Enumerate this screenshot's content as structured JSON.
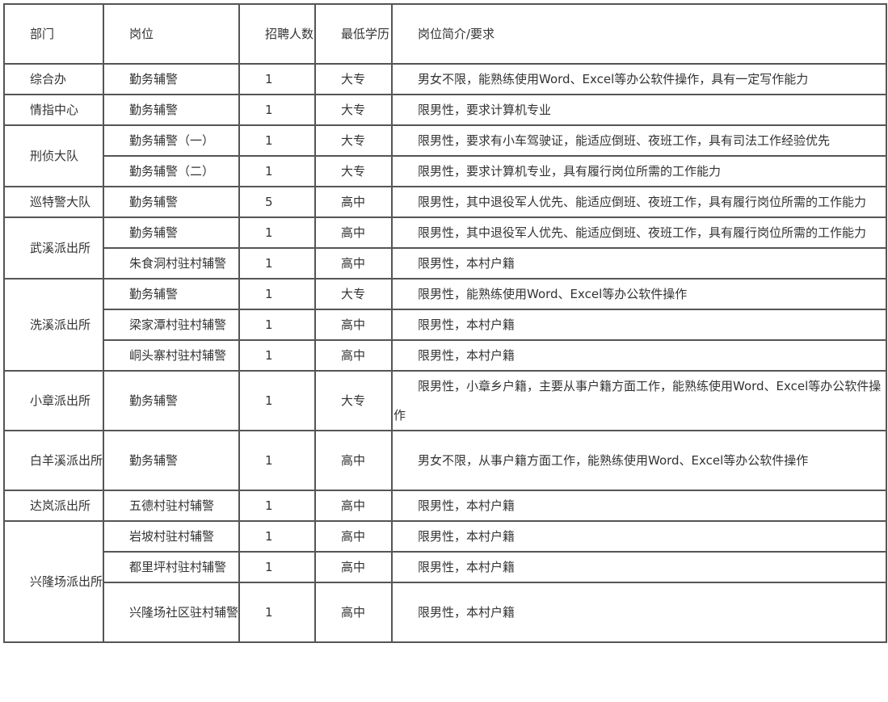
{
  "headers": [
    "部门",
    "岗位",
    "招聘人数",
    "最低学历",
    "岗位简介/要求"
  ],
  "departments": [
    {
      "name": "综合办",
      "positions": [
        {
          "title": "勤务辅警",
          "count": "1",
          "education": "大专",
          "requirements": "男女不限，能熟练使用Word、Excel等办公软件操作，具有一定写作能力"
        }
      ]
    },
    {
      "name": "情指中心",
      "positions": [
        {
          "title": "勤务辅警",
          "count": "1",
          "education": "大专",
          "requirements": "限男性，要求计算机专业"
        }
      ]
    },
    {
      "name": "刑侦大队",
      "positions": [
        {
          "title": "勤务辅警（一）",
          "count": "1",
          "education": "大专",
          "requirements": "限男性，要求有小车驾驶证，能适应倒班、夜班工作，具有司法工作经验优先"
        },
        {
          "title": "勤务辅警（二）",
          "count": "1",
          "education": "大专",
          "requirements": "限男性，要求计算机专业，具有履行岗位所需的工作能力"
        }
      ]
    },
    {
      "name": "巡特警大队",
      "positions": [
        {
          "title": "勤务辅警",
          "count": "5",
          "education": "高中",
          "requirements": "限男性，其中退役军人优先、能适应倒班、夜班工作，具有履行岗位所需的工作能力"
        }
      ]
    },
    {
      "name": "武溪派出所",
      "positions": [
        {
          "title": "勤务辅警",
          "count": "1",
          "education": "高中",
          "requirements": "限男性，其中退役军人优先、能适应倒班、夜班工作，具有履行岗位所需的工作能力"
        },
        {
          "title": "朱食洞村驻村辅警",
          "count": "1",
          "education": "高中",
          "requirements": "限男性，本村户籍"
        }
      ]
    },
    {
      "name": "洗溪派出所",
      "positions": [
        {
          "title": "勤务辅警",
          "count": "1",
          "education": "大专",
          "requirements": "限男性，能熟练使用Word、Excel等办公软件操作"
        },
        {
          "title": "梁家潭村驻村辅警",
          "count": "1",
          "education": "高中",
          "requirements": "限男性，本村户籍"
        },
        {
          "title": "峒头寨村驻村辅警",
          "count": "1",
          "education": "高中",
          "requirements": "限男性，本村户籍"
        }
      ]
    },
    {
      "name": "小章派出所",
      "positions": [
        {
          "title": "勤务辅警",
          "count": "1",
          "education": "大专",
          "requirements": "限男性，小章乡户籍，主要从事户籍方面工作，能熟练使用Word、Excel等办公软件操作"
        }
      ]
    },
    {
      "name": "白羊溪派出所",
      "positions": [
        {
          "title": "勤务辅警",
          "count": "1",
          "education": "高中",
          "requirements": "男女不限，从事户籍方面工作，能熟练使用Word、Excel等办公软件操作"
        }
      ]
    },
    {
      "name": "达岚派出所",
      "positions": [
        {
          "title": "五德村驻村辅警",
          "count": "1",
          "education": "高中",
          "requirements": "限男性，本村户籍"
        }
      ]
    },
    {
      "name": "兴隆场派出所",
      "positions": [
        {
          "title": "岩坡村驻村辅警",
          "count": "1",
          "education": "高中",
          "requirements": "限男性，本村户籍"
        },
        {
          "title": "都里坪村驻村辅警",
          "count": "1",
          "education": "高中",
          "requirements": "限男性，本村户籍"
        },
        {
          "title": "兴隆场社区驻村辅警",
          "count": "1",
          "education": "高中",
          "requirements": "限男性，本村户籍"
        }
      ]
    }
  ]
}
